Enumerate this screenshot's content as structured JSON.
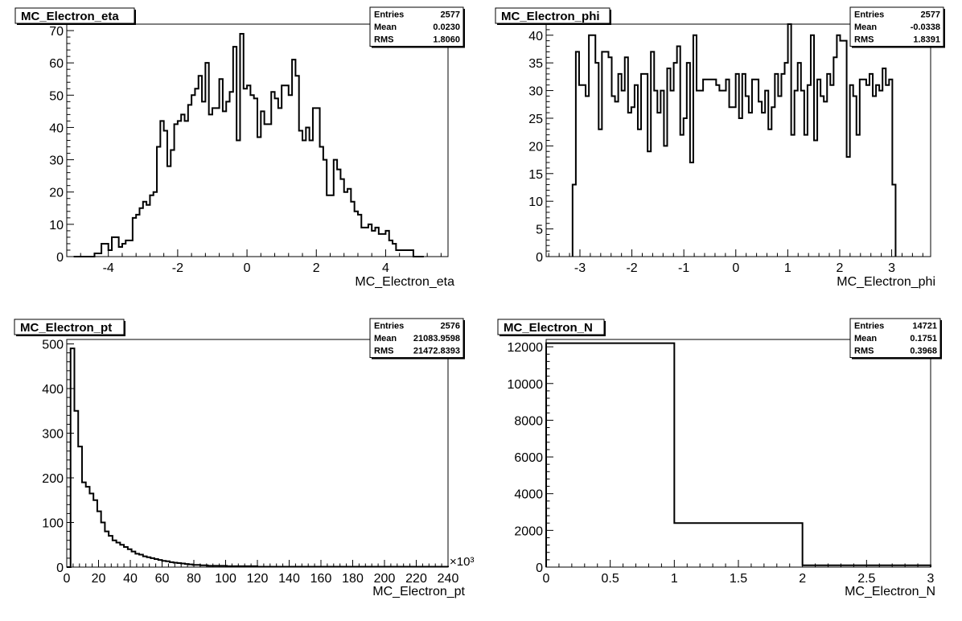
{
  "chart_data": [
    {
      "type": "bar",
      "title": "MC_Electron_eta",
      "xlabel": "MC_Electron_eta",
      "xlim": [
        -5.2,
        5.8
      ],
      "ylim": [
        0,
        72
      ],
      "xticks": [
        -4,
        -2,
        0,
        2,
        4
      ],
      "yticks": [
        0,
        10,
        20,
        30,
        40,
        50,
        60,
        70
      ],
      "stats": [
        [
          "Entries",
          "2577"
        ],
        [
          "Mean",
          "0.0230"
        ],
        [
          "RMS",
          "1.8060"
        ]
      ],
      "bins": {
        "start": -5.0,
        "width": 0.1
      },
      "values": [
        0,
        0,
        0,
        0,
        0,
        0,
        1,
        1,
        4,
        4,
        2,
        6,
        6,
        3,
        4,
        5,
        5,
        12,
        13,
        15,
        17,
        16,
        19,
        20,
        34,
        42,
        39,
        28,
        33,
        41,
        42,
        44,
        42,
        47,
        50,
        52,
        56,
        48,
        60,
        44,
        46,
        46,
        55,
        45,
        48,
        51,
        65,
        36,
        69,
        52,
        53,
        50,
        49,
        37,
        45,
        41,
        41,
        51,
        49,
        46,
        53,
        53,
        50,
        61,
        56,
        39,
        36,
        40,
        36,
        46,
        46,
        34,
        30,
        19,
        19,
        30,
        27,
        24,
        20,
        21,
        17,
        14,
        13,
        9,
        9,
        10,
        8,
        9,
        7,
        7,
        8,
        5,
        4,
        2,
        2,
        2,
        2,
        2,
        0,
        0,
        0
      ]
    },
    {
      "type": "bar",
      "title": "MC_Electron_phi",
      "xlabel": "MC_Electron_phi",
      "xlim": [
        -3.65,
        3.75
      ],
      "ylim": [
        0,
        42
      ],
      "xticks": [
        -3,
        -2,
        -1,
        0,
        1,
        2,
        3
      ],
      "yticks": [
        0,
        5,
        10,
        15,
        20,
        25,
        30,
        35,
        40
      ],
      "stats": [
        [
          "Entries",
          "2577"
        ],
        [
          "Mean",
          "-0.0338"
        ],
        [
          "RMS",
          "1.8391"
        ]
      ],
      "bins": {
        "start": -3.1416,
        "width": 0.0628
      },
      "values": [
        13,
        37,
        31,
        31,
        29,
        40,
        40,
        35,
        23,
        37,
        37,
        36,
        29,
        28,
        33,
        30,
        36,
        26,
        27,
        31,
        23,
        33,
        33,
        19,
        37,
        30,
        26,
        30,
        20,
        34,
        30,
        35,
        38,
        22,
        25,
        35,
        17,
        40,
        30,
        30,
        32,
        32,
        32,
        32,
        31,
        30,
        30,
        32,
        27,
        27,
        33,
        25,
        33,
        29,
        26,
        32,
        32,
        28,
        26,
        30,
        23,
        27,
        33,
        29,
        33,
        35,
        42,
        22,
        30,
        35,
        30,
        22,
        31,
        40,
        21,
        32,
        29,
        28,
        33,
        31,
        36,
        40,
        39,
        39,
        18,
        31,
        29,
        22,
        32,
        32,
        31,
        33,
        29,
        31,
        30,
        34,
        31,
        32,
        13
      ]
    },
    {
      "type": "bar",
      "title": "MC_Electron_pt",
      "xlabel": "MC_Electron_pt",
      "xlim": [
        0,
        240
      ],
      "ylim": [
        0,
        510
      ],
      "xticks": [
        0,
        20,
        40,
        60,
        80,
        100,
        120,
        140,
        160,
        180,
        200,
        220,
        240
      ],
      "yticks": [
        0,
        100,
        200,
        300,
        400,
        500
      ],
      "multiplier": "×10³",
      "stats": [
        [
          "Entries",
          "2576"
        ],
        [
          "Mean",
          "21083.9598"
        ],
        [
          "RMS",
          "21472.8393"
        ]
      ],
      "bins": {
        "start": 0,
        "width": 2.4
      },
      "values": [
        0,
        490,
        350,
        270,
        190,
        180,
        165,
        150,
        125,
        100,
        80,
        70,
        60,
        55,
        50,
        45,
        40,
        35,
        30,
        28,
        24,
        22,
        20,
        18,
        16,
        14,
        13,
        11,
        10,
        9,
        8,
        7,
        6,
        5,
        5,
        4,
        4,
        3,
        3,
        3,
        3,
        3,
        2,
        2,
        2,
        2,
        2,
        2,
        2,
        2,
        1,
        1,
        1,
        1,
        1,
        1,
        1,
        1,
        1,
        1,
        1,
        1,
        1,
        1,
        1,
        1,
        1,
        1,
        1,
        1,
        1,
        1,
        1,
        1,
        1,
        1,
        1,
        1,
        1,
        1,
        1,
        1,
        1,
        1,
        1,
        1,
        1,
        1,
        1,
        1,
        1,
        1,
        1,
        1,
        1,
        1,
        1,
        1,
        1,
        1
      ]
    },
    {
      "type": "bar",
      "title": "MC_Electron_N",
      "xlabel": "MC_Electron_N",
      "xlim": [
        0,
        3
      ],
      "ylim": [
        0,
        12400
      ],
      "xticks": [
        0,
        0.5,
        1,
        1.5,
        2,
        2.5,
        3
      ],
      "yticks": [
        0,
        2000,
        4000,
        6000,
        8000,
        10000,
        12000
      ],
      "stats": [
        [
          "Entries",
          "14721"
        ],
        [
          "Mean",
          "0.1751"
        ],
        [
          "RMS",
          "0.3968"
        ]
      ],
      "bins": {
        "start": 0,
        "width": 1
      },
      "values": [
        12200,
        2400,
        100
      ]
    }
  ]
}
